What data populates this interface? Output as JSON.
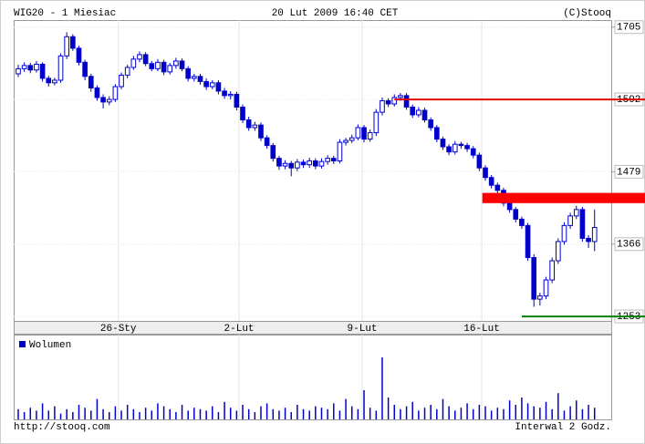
{
  "chart_data": {
    "type": "candlestick",
    "title": "WIG20 - 1 Miesiac",
    "timestamp": "20 Lut 2009 16:40 CET",
    "copyright": "(C)Stooq",
    "footer_left": "http://stooq.com",
    "footer_right": "Interwal 2 Godz.",
    "color": "#0000cc",
    "ylim": [
      1246,
      1716
    ],
    "yticks": [
      1253,
      1366,
      1479,
      1592,
      1705
    ],
    "xlim": [
      -0.75,
      97.75
    ],
    "xticks": [
      {
        "value": 16.5,
        "label": "26-Sty"
      },
      {
        "value": 36.4,
        "label": "2-Lut"
      },
      {
        "value": 56.7,
        "label": "9-Lut"
      },
      {
        "value": 76.4,
        "label": "16-Lut"
      }
    ],
    "grid": true,
    "open": [
      1632,
      1640,
      1645,
      1638,
      1647,
      1625,
      1618,
      1622,
      1660,
      1690,
      1672,
      1650,
      1628,
      1610,
      1595,
      1588,
      1592,
      1612,
      1630,
      1642,
      1655,
      1662,
      1648,
      1640,
      1650,
      1635,
      1645,
      1652,
      1640,
      1625,
      1628,
      1620,
      1612,
      1618,
      1605,
      1598,
      1600,
      1580,
      1560,
      1548,
      1552,
      1532,
      1520,
      1500,
      1488,
      1492,
      1485,
      1494,
      1490,
      1496,
      1488,
      1495,
      1500,
      1496,
      1525,
      1528,
      1532,
      1548,
      1530,
      1540,
      1572,
      1590,
      1585,
      1595,
      1598,
      1580,
      1568,
      1575,
      1560,
      1548,
      1530,
      1518,
      1510,
      1522,
      1520,
      1515,
      1505,
      1485,
      1470,
      1458,
      1450,
      1430,
      1420,
      1405,
      1395,
      1345,
      1280,
      1285,
      1310,
      1340,
      1370,
      1395,
      1410,
      1420,
      1375,
      1370
    ],
    "high": [
      1646,
      1650,
      1649,
      1652,
      1650,
      1629,
      1626,
      1664,
      1697,
      1694,
      1676,
      1654,
      1632,
      1614,
      1600,
      1597,
      1616,
      1634,
      1646,
      1660,
      1667,
      1666,
      1652,
      1655,
      1654,
      1649,
      1657,
      1656,
      1644,
      1632,
      1632,
      1625,
      1622,
      1622,
      1610,
      1605,
      1604,
      1584,
      1565,
      1557,
      1556,
      1536,
      1524,
      1504,
      1497,
      1496,
      1499,
      1498,
      1501,
      1500,
      1500,
      1505,
      1504,
      1530,
      1532,
      1537,
      1553,
      1552,
      1545,
      1577,
      1595,
      1594,
      1600,
      1602,
      1602,
      1584,
      1580,
      1579,
      1564,
      1552,
      1534,
      1522,
      1527,
      1526,
      1524,
      1519,
      1509,
      1489,
      1474,
      1462,
      1454,
      1434,
      1424,
      1409,
      1399,
      1350,
      1290,
      1315,
      1345,
      1375,
      1400,
      1415,
      1426,
      1424,
      1380,
      1420
    ],
    "low": [
      1627,
      1635,
      1633,
      1634,
      1620,
      1612,
      1614,
      1618,
      1655,
      1668,
      1645,
      1622,
      1604,
      1590,
      1578,
      1583,
      1588,
      1608,
      1625,
      1638,
      1650,
      1644,
      1636,
      1636,
      1630,
      1631,
      1640,
      1636,
      1620,
      1620,
      1615,
      1607,
      1608,
      1600,
      1593,
      1592,
      1575,
      1555,
      1543,
      1543,
      1527,
      1515,
      1495,
      1482,
      1483,
      1472,
      1480,
      1485,
      1485,
      1483,
      1484,
      1490,
      1491,
      1492,
      1520,
      1524,
      1528,
      1525,
      1526,
      1535,
      1567,
      1580,
      1581,
      1590,
      1576,
      1563,
      1564,
      1556,
      1543,
      1525,
      1513,
      1505,
      1506,
      1515,
      1510,
      1500,
      1480,
      1465,
      1453,
      1445,
      1425,
      1415,
      1400,
      1390,
      1340,
      1268,
      1270,
      1280,
      1305,
      1335,
      1365,
      1390,
      1405,
      1370,
      1360,
      1355
    ],
    "close": [
      1640,
      1645,
      1638,
      1647,
      1625,
      1618,
      1622,
      1660,
      1690,
      1672,
      1650,
      1628,
      1610,
      1595,
      1588,
      1592,
      1612,
      1630,
      1642,
      1655,
      1662,
      1648,
      1640,
      1650,
      1635,
      1645,
      1652,
      1640,
      1625,
      1628,
      1620,
      1612,
      1618,
      1605,
      1598,
      1600,
      1580,
      1560,
      1548,
      1552,
      1532,
      1520,
      1500,
      1488,
      1492,
      1485,
      1494,
      1490,
      1496,
      1488,
      1495,
      1500,
      1496,
      1525,
      1528,
      1532,
      1548,
      1530,
      1540,
      1572,
      1590,
      1585,
      1595,
      1598,
      1580,
      1568,
      1575,
      1560,
      1548,
      1530,
      1518,
      1510,
      1522,
      1520,
      1515,
      1505,
      1485,
      1470,
      1458,
      1450,
      1430,
      1420,
      1405,
      1395,
      1345,
      1280,
      1285,
      1310,
      1340,
      1370,
      1395,
      1410,
      1420,
      1375,
      1370,
      1392
    ],
    "volume_label": "Wolumen",
    "volume_ylim": [
      0,
      100
    ],
    "volume": [
      14,
      10,
      16,
      12,
      22,
      12,
      18,
      8,
      14,
      10,
      20,
      16,
      12,
      28,
      14,
      10,
      18,
      12,
      20,
      14,
      10,
      16,
      12,
      22,
      18,
      14,
      10,
      20,
      12,
      16,
      14,
      12,
      18,
      10,
      24,
      16,
      12,
      20,
      14,
      10,
      18,
      22,
      14,
      12,
      16,
      10,
      20,
      14,
      12,
      18,
      16,
      14,
      22,
      12,
      28,
      18,
      14,
      40,
      16,
      12,
      85,
      30,
      20,
      14,
      18,
      24,
      12,
      16,
      20,
      14,
      28,
      18,
      12,
      16,
      22,
      14,
      20,
      18,
      12,
      16,
      14,
      26,
      20,
      30,
      22,
      18,
      16,
      24,
      14,
      36,
      12,
      18,
      26,
      14,
      20,
      16
    ],
    "levels": [
      {
        "value": 1592,
        "from": 62,
        "color": "#e00000"
      },
      {
        "value": 1253,
        "from": 83,
        "color": "#008000"
      }
    ],
    "bands": [
      {
        "low": 1430,
        "high": 1446,
        "from": 76.5,
        "color": "#ff0000"
      }
    ]
  }
}
